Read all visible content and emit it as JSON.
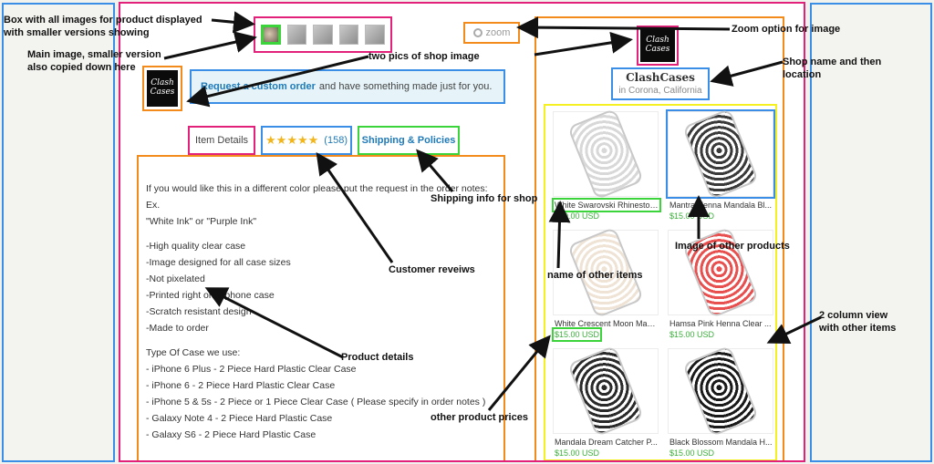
{
  "annotations": {
    "thumbs_box": "Box with all images for product displayed with smaller versions showing",
    "main_image": "Main image, smaller version also copied down here",
    "shop_pics": "two pics of shop image",
    "zoom": "Zoom option for image",
    "shop_name": "Shop name and then location",
    "shipping": "Shipping info for shop",
    "reviews": "Customer reveiws",
    "product_details": "Product details",
    "other_names": "name of other items",
    "other_images": "Image of other products",
    "two_column": "2 column view with other items",
    "other_prices": "other product prices"
  },
  "zoom_label": "zoom",
  "logo_text": "Clash Cases",
  "request": {
    "link": "Request a custom order",
    "rest": "and have something made just for you."
  },
  "tabs": {
    "item_details": "Item Details",
    "stars": "★★★★★",
    "review_count": "(158)",
    "shipping": "Shipping & Policies"
  },
  "rating_stars": 4.5,
  "details_lines": [
    "If you would like this in a different color please put the request in the order notes:",
    "Ex.",
    "\"White Ink\" or \"Purple Ink\"",
    "",
    "-High quality clear case",
    "-Image designed for all case sizes",
    "-Not pixelated",
    "-Printed right onto phone case",
    "-Scratch resistant design",
    "-Made to order",
    "",
    "Type Of Case we use:",
    "- iPhone 6 Plus - 2 Piece Hard Plastic Clear Case",
    "- iPhone 6 - 2 Piece Hard Plastic Clear Case",
    "- iPhone 5 & 5s - 2 Piece or 1 Piece Clear Case ( Please specify in order notes )",
    "- Galaxy Note 4 - 2 Piece Hard Plastic Case",
    "- Galaxy S6 - 2 Piece Hard Plastic Case"
  ],
  "shop": {
    "name": "ClashCases",
    "location": "in Corona, California"
  },
  "products": [
    {
      "title": "White Swarovski Rhinestone...",
      "price": "$20.00 USD",
      "pattern": "#d8d8d8"
    },
    {
      "title": "Mantra Henna Mandala Bl...",
      "price": "$15.00 USD",
      "pattern": "#3a3a3a"
    },
    {
      "title": "White Crescent Moon Man...",
      "price": "$15.00 USD",
      "pattern": "#efe3d6"
    },
    {
      "title": "Hamsa Pink Henna Clear ...",
      "price": "$15.00 USD",
      "pattern": "#e85050"
    },
    {
      "title": "Mandala Dream Catcher P...",
      "price": "$15.00 USD",
      "pattern": "#2a2a2a"
    },
    {
      "title": "Black Blossom Mandala H...",
      "price": "$15.00 USD",
      "pattern": "#1a1a1a"
    }
  ]
}
